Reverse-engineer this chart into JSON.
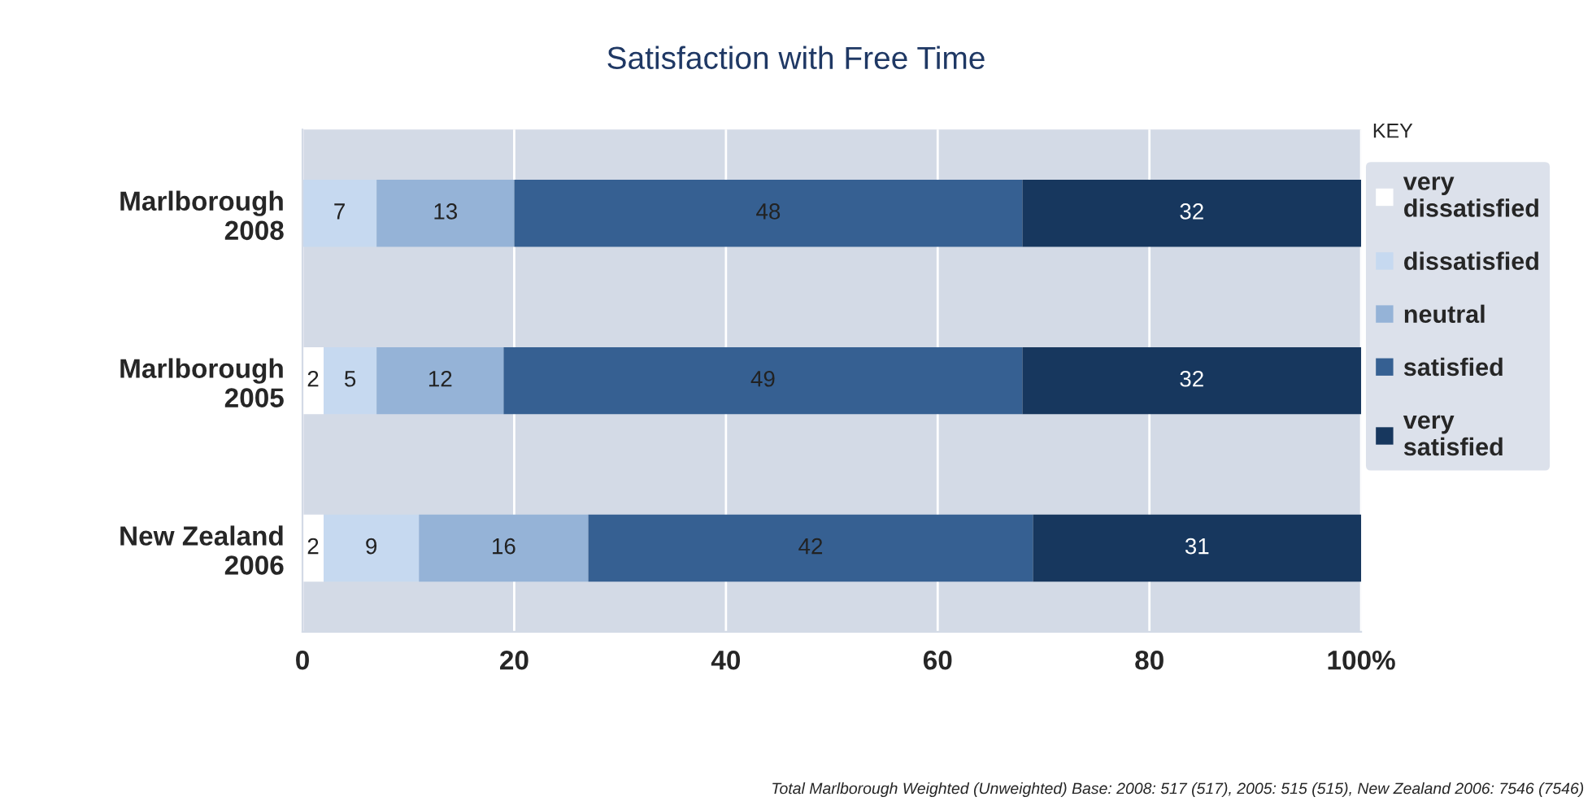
{
  "chart_data": {
    "type": "bar",
    "orientation": "horizontal",
    "stacked": true,
    "title": "Satisfaction with Free Time",
    "categories": [
      "Marlborough\n2008",
      "Marlborough\n2005",
      "New Zealand\n2006"
    ],
    "series": [
      {
        "name": "very\ndissatisfied",
        "color": "#ffffff",
        "values": [
          0,
          2,
          2
        ],
        "value_labels": [
          null,
          "2",
          "2"
        ]
      },
      {
        "name": "dissatisfied",
        "color": "#c6d9f0",
        "values": [
          7,
          5,
          9
        ],
        "value_labels": [
          "7",
          "5",
          "9"
        ]
      },
      {
        "name": "neutral",
        "color": "#95b3d7",
        "values": [
          13,
          12,
          16
        ],
        "value_labels": [
          "13",
          "12",
          "16"
        ]
      },
      {
        "name": "satisfied",
        "color": "#366092",
        "values": [
          48,
          49,
          42
        ],
        "value_labels": [
          "48",
          "49",
          "42"
        ]
      },
      {
        "name": "very\nsatisfied",
        "color": "#17375e",
        "values": [
          32,
          32,
          31
        ],
        "value_labels": [
          "32",
          "32",
          "31"
        ]
      }
    ],
    "xlim": [
      0,
      100
    ],
    "xticks": [
      0,
      20,
      40,
      60,
      80,
      {
        "value": 100,
        "label": "100%"
      }
    ],
    "grid": "x",
    "legend": "right",
    "legend_title": "KEY",
    "annotations": [
      "Total Marlborough Weighted (Unweighted) Base: 2008: 517 (517), 2005: 515 (515), New Zealand 2006: 7546 (7546)"
    ]
  }
}
